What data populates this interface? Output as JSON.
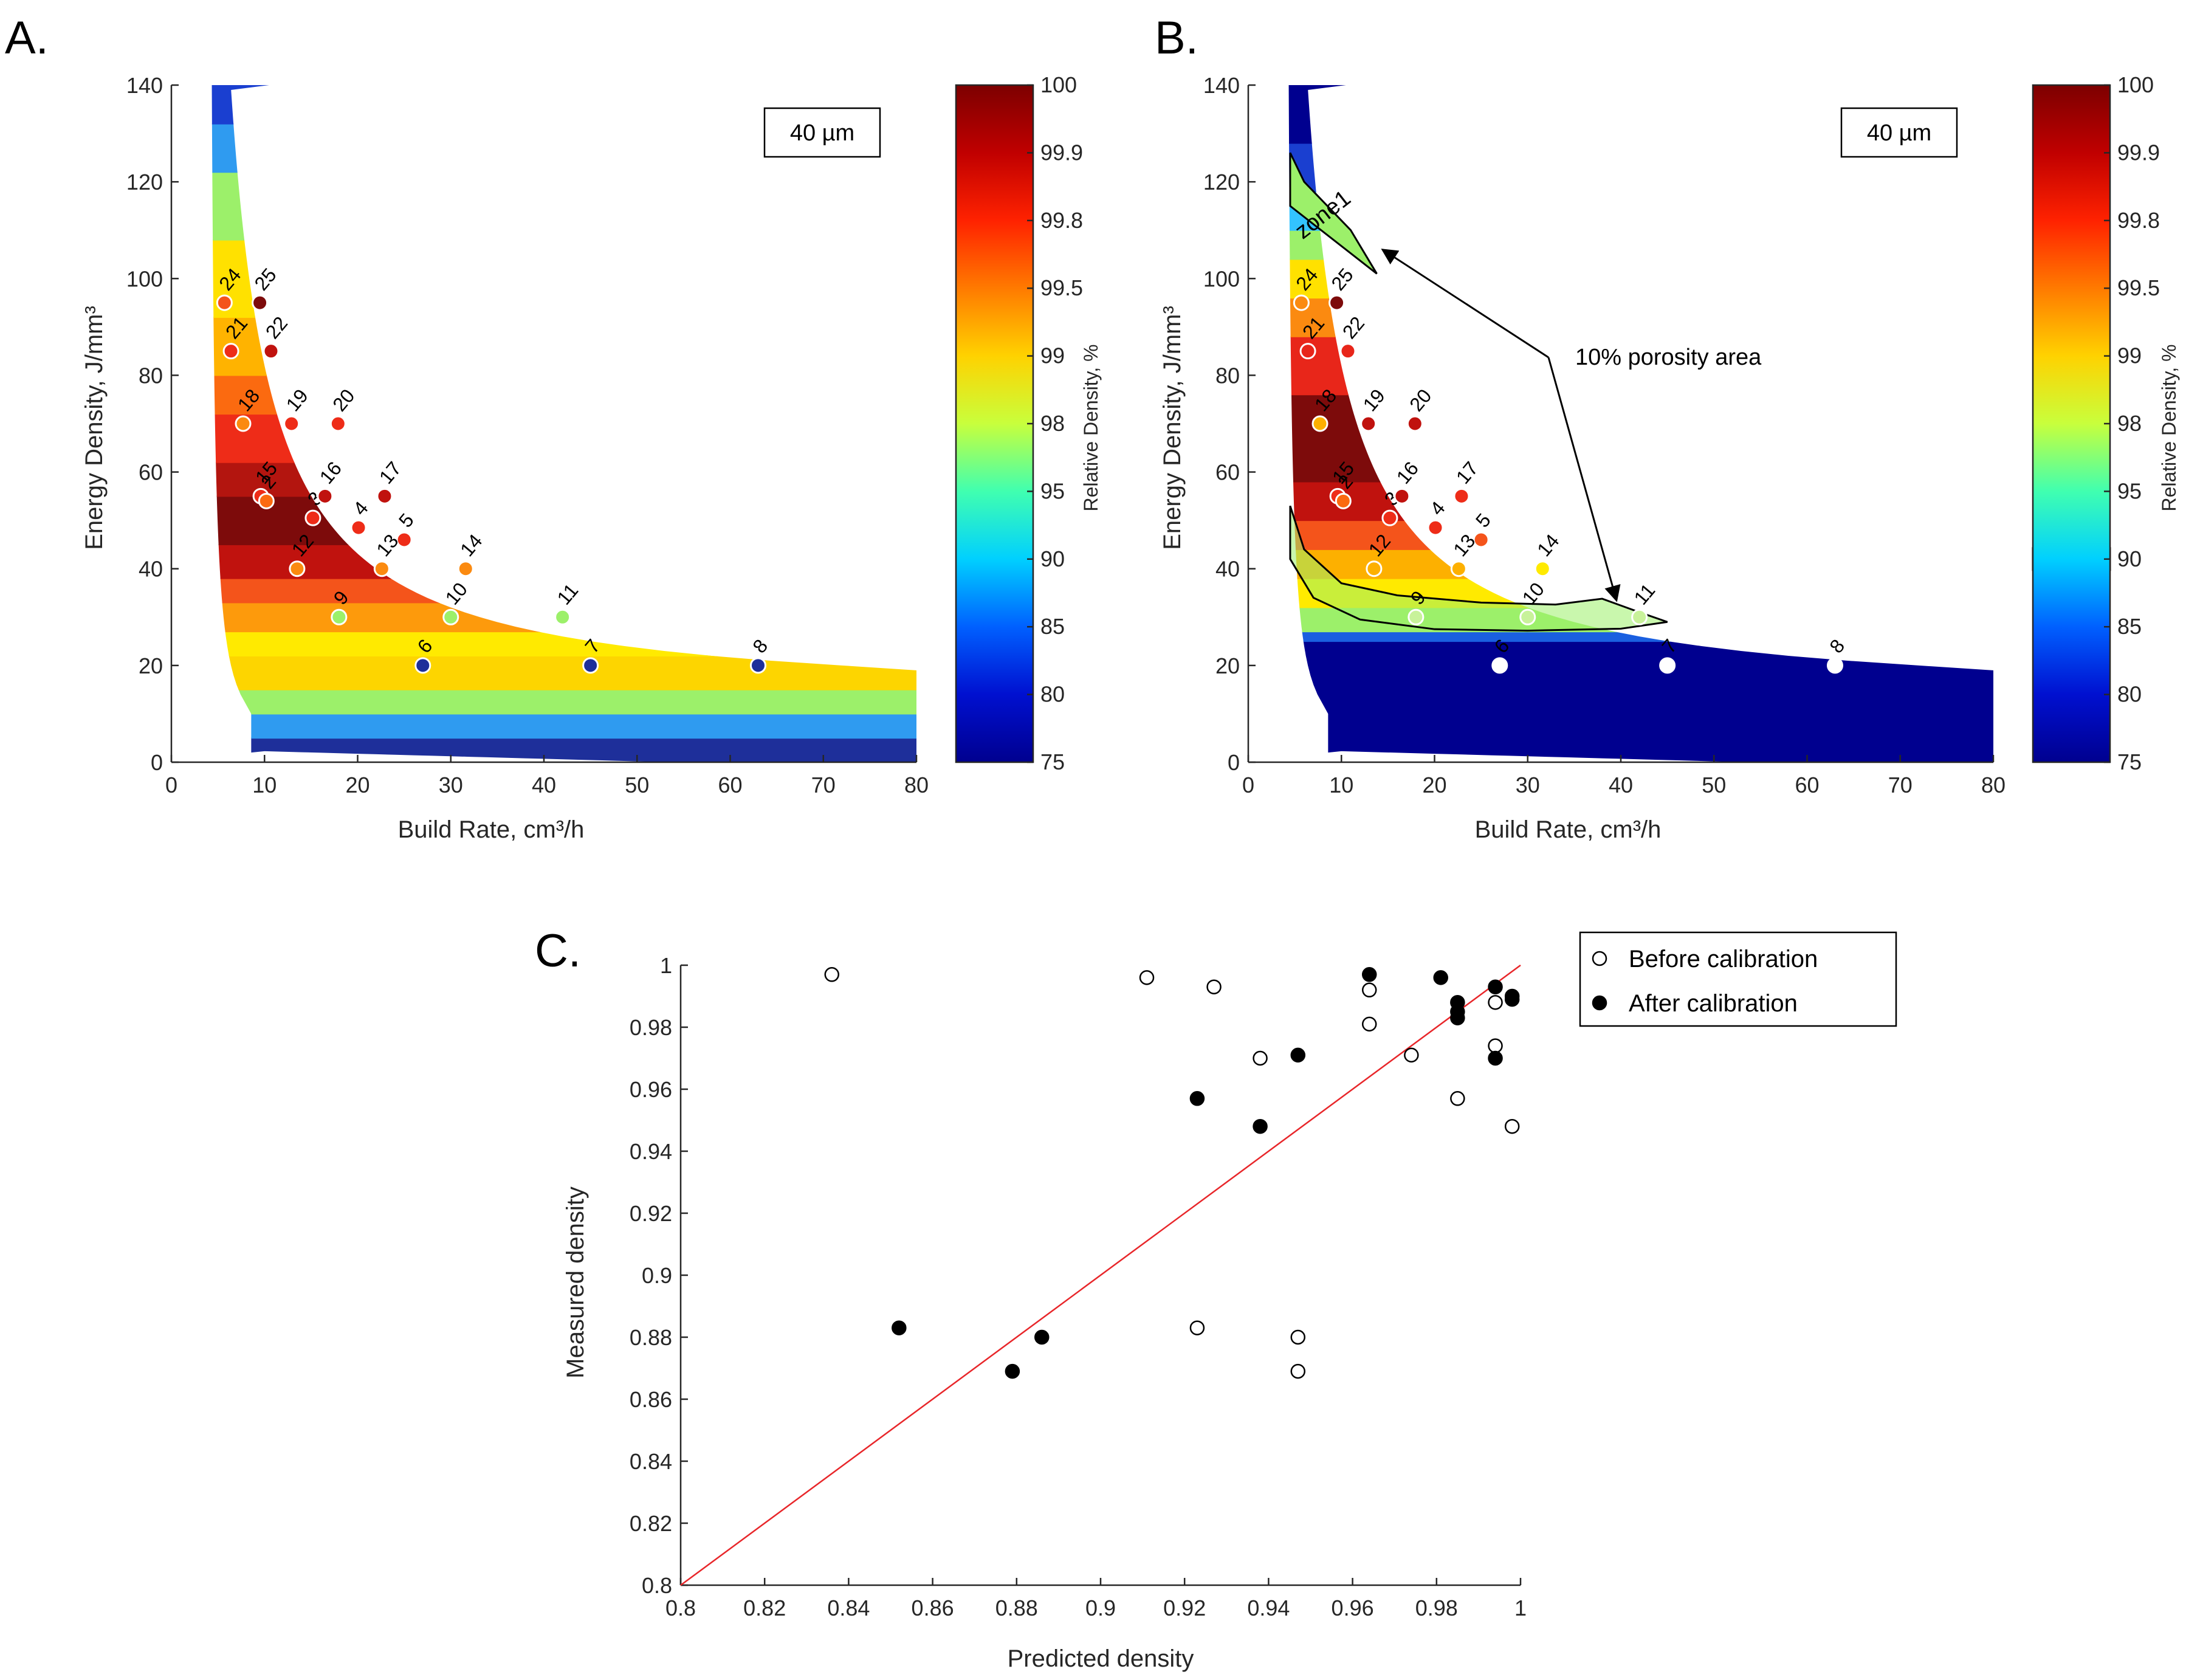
{
  "panels": {
    "a": {
      "letter": "A.",
      "box_label": "40 µm",
      "xlabel": "Build Rate, cm³/h",
      "ylabel": "Energy Density, J/mm³",
      "colorbar_label": "Relative Density, %"
    },
    "b": {
      "letter": "B.",
      "box_label": "40 µm",
      "xlabel": "Build Rate, cm³/h",
      "ylabel": "Energy Density, J/mm³",
      "colorbar_label": "Relative Density, %",
      "zone_label": "zone1",
      "arrow_label": "10% porosity area"
    },
    "c": {
      "letter": "C.",
      "xlabel": "Predicted density",
      "ylabel": "Measured density",
      "legend": [
        "Before calibration",
        "After calibration"
      ]
    }
  },
  "colors": {
    "fit_line": "#e8262a",
    "axis": "#262626"
  },
  "chart_data": [
    {
      "type": "heatmap",
      "panel": "A",
      "xlabel": "Build Rate, cm³/h",
      "ylabel": "Energy Density, J/mm³",
      "xlim": [
        0,
        80
      ],
      "ylim": [
        0,
        140
      ],
      "xticks": [
        "0",
        "10",
        "20",
        "30",
        "40",
        "50",
        "60",
        "70",
        "80"
      ],
      "yticks": [
        "0",
        "20",
        "40",
        "60",
        "80",
        "100",
        "120",
        "140"
      ],
      "colorbar": {
        "label": "Relative Density, %",
        "ticks": [
          "100",
          "99.9",
          "99.8",
          "99.5",
          "99",
          "98",
          "95",
          "90",
          "85",
          "80",
          "75"
        ]
      },
      "bands": [
        {
          "e0": 0,
          "e1": 5,
          "color": "#1e2f9a"
        },
        {
          "e0": 5,
          "e1": 10,
          "color": "#2f9bf0"
        },
        {
          "e0": 10,
          "e1": 15,
          "color": "#9cf06a"
        },
        {
          "e0": 15,
          "e1": 22,
          "color": "#fdd500"
        },
        {
          "e0": 22,
          "e1": 27,
          "color": "#ffea00"
        },
        {
          "e0": 27,
          "e1": 33,
          "color": "#fd9a0c"
        },
        {
          "e0": 33,
          "e1": 38,
          "color": "#f4541b"
        },
        {
          "e0": 38,
          "e1": 45,
          "color": "#c0120e"
        },
        {
          "e0": 45,
          "e1": 55,
          "color": "#7d0b0b"
        },
        {
          "e0": 55,
          "e1": 62,
          "color": "#b3150f"
        },
        {
          "e0": 62,
          "e1": 72,
          "color": "#ee2c18"
        },
        {
          "e0": 72,
          "e1": 80,
          "color": "#fb6a10"
        },
        {
          "e0": 80,
          "e1": 92,
          "color": "#ffb300"
        },
        {
          "e0": 92,
          "e1": 108,
          "color": "#ffe100"
        },
        {
          "e0": 108,
          "e1": 122,
          "color": "#9cf06a"
        },
        {
          "e0": 122,
          "e1": 132,
          "color": "#2f9bf0"
        },
        {
          "e0": 132,
          "e1": 140,
          "color": "#1a3fd0"
        }
      ],
      "points": [
        {
          "label": "24",
          "x": 5.7,
          "y": 95,
          "color": "#f4541b"
        },
        {
          "label": "25",
          "x": 9.5,
          "y": 95,
          "color": "#7d0b0b"
        },
        {
          "label": "21",
          "x": 6.4,
          "y": 85,
          "color": "#ee2c18"
        },
        {
          "label": "22",
          "x": 10.7,
          "y": 85,
          "color": "#c0120e"
        },
        {
          "label": "18",
          "x": 7.7,
          "y": 70,
          "color": "#fb8a10"
        },
        {
          "label": "19",
          "x": 12.9,
          "y": 70,
          "color": "#ee2c18"
        },
        {
          "label": "20",
          "x": 17.9,
          "y": 70,
          "color": "#ee2c18"
        },
        {
          "label": "15",
          "x": 9.6,
          "y": 55,
          "color": "#ee2c18"
        },
        {
          "label": "2",
          "x": 10.2,
          "y": 54,
          "color": "#fb6a10"
        },
        {
          "label": "3",
          "x": 15.2,
          "y": 50.5,
          "color": "#ee2c18"
        },
        {
          "label": "16",
          "x": 16.5,
          "y": 55,
          "color": "#c0120e"
        },
        {
          "label": "17",
          "x": 22.9,
          "y": 55,
          "color": "#c0120e"
        },
        {
          "label": "4",
          "x": 20.1,
          "y": 48.5,
          "color": "#ee2c18"
        },
        {
          "label": "5",
          "x": 25,
          "y": 46,
          "color": "#ee2c18"
        },
        {
          "label": "12",
          "x": 13.5,
          "y": 40,
          "color": "#fb8a10"
        },
        {
          "label": "13",
          "x": 22.6,
          "y": 40,
          "color": "#fb8a10"
        },
        {
          "label": "14",
          "x": 31.6,
          "y": 40,
          "color": "#fb8a10"
        },
        {
          "label": "9",
          "x": 18,
          "y": 30,
          "color": "#9cf06a"
        },
        {
          "label": "10",
          "x": 30,
          "y": 30,
          "color": "#9cf06a"
        },
        {
          "label": "11",
          "x": 42,
          "y": 30,
          "color": "#9cf06a"
        },
        {
          "label": "6",
          "x": 27,
          "y": 20,
          "color": "#1e2f9a"
        },
        {
          "label": "7",
          "x": 45,
          "y": 20,
          "color": "#1e2f9a"
        },
        {
          "label": "8",
          "x": 63,
          "y": 20,
          "color": "#1e2f9a"
        }
      ]
    },
    {
      "type": "heatmap",
      "panel": "B",
      "xlabel": "Build Rate, cm³/h",
      "ylabel": "Energy Density, J/mm³",
      "xlim": [
        0,
        80
      ],
      "ylim": [
        0,
        140
      ],
      "xticks": [
        "0",
        "10",
        "20",
        "30",
        "40",
        "50",
        "60",
        "70",
        "80"
      ],
      "yticks": [
        "0",
        "20",
        "40",
        "60",
        "80",
        "100",
        "120",
        "140"
      ],
      "colorbar": {
        "label": "Relative Density, %",
        "ticks": [
          "100",
          "99.9",
          "99.8",
          "99.5",
          "99",
          "98",
          "95",
          "90",
          "85",
          "80",
          "75"
        ]
      },
      "bands": [
        {
          "e0": 0,
          "e1": 25,
          "color": "#00008f"
        },
        {
          "e0": 25,
          "e1": 27,
          "color": "#1a5fe0"
        },
        {
          "e0": 27,
          "e1": 32,
          "color": "#9cf06a"
        },
        {
          "e0": 32,
          "e1": 38,
          "color": "#ffea00"
        },
        {
          "e0": 38,
          "e1": 44,
          "color": "#fdb000"
        },
        {
          "e0": 44,
          "e1": 50,
          "color": "#f4541b"
        },
        {
          "e0": 50,
          "e1": 58,
          "color": "#c0120e"
        },
        {
          "e0": 58,
          "e1": 76,
          "color": "#7d0b0b"
        },
        {
          "e0": 76,
          "e1": 88,
          "color": "#e8261a"
        },
        {
          "e0": 88,
          "e1": 96,
          "color": "#fb8a10"
        },
        {
          "e0": 96,
          "e1": 104,
          "color": "#ffe100"
        },
        {
          "e0": 104,
          "e1": 110,
          "color": "#9cf06a"
        },
        {
          "e0": 110,
          "e1": 118,
          "color": "#33c3ff"
        },
        {
          "e0": 118,
          "e1": 128,
          "color": "#1a3fd0"
        },
        {
          "e0": 128,
          "e1": 140,
          "color": "#00008f"
        }
      ],
      "points": [
        {
          "label": "24",
          "x": 5.7,
          "y": 95,
          "color": "#fb8a10"
        },
        {
          "label": "25",
          "x": 9.5,
          "y": 95,
          "color": "#7d0b0b"
        },
        {
          "label": "21",
          "x": 6.4,
          "y": 85,
          "color": "#e8261a"
        },
        {
          "label": "22",
          "x": 10.7,
          "y": 85,
          "color": "#e8261a"
        },
        {
          "label": "18",
          "x": 7.7,
          "y": 70,
          "color": "#fdb000"
        },
        {
          "label": "19",
          "x": 12.9,
          "y": 70,
          "color": "#c0120e"
        },
        {
          "label": "20",
          "x": 17.9,
          "y": 70,
          "color": "#c0120e"
        },
        {
          "label": "15",
          "x": 9.6,
          "y": 55,
          "color": "#ee2c18"
        },
        {
          "label": "2",
          "x": 10.2,
          "y": 54,
          "color": "#fb6a10"
        },
        {
          "label": "3",
          "x": 15.2,
          "y": 50.5,
          "color": "#ee2c18"
        },
        {
          "label": "16",
          "x": 16.5,
          "y": 55,
          "color": "#c0120e"
        },
        {
          "label": "17",
          "x": 22.9,
          "y": 55,
          "color": "#ee2c18"
        },
        {
          "label": "4",
          "x": 20.1,
          "y": 48.5,
          "color": "#ee2c18"
        },
        {
          "label": "5",
          "x": 25,
          "y": 46,
          "color": "#f4541b"
        },
        {
          "label": "12",
          "x": 13.5,
          "y": 40,
          "color": "#fdb000"
        },
        {
          "label": "13",
          "x": 22.6,
          "y": 40,
          "color": "#fdb000"
        },
        {
          "label": "14",
          "x": 31.6,
          "y": 40,
          "color": "#ffea00"
        },
        {
          "label": "9",
          "x": 18,
          "y": 30,
          "color": "#c8f29a"
        },
        {
          "label": "10",
          "x": 30,
          "y": 30,
          "color": "#c8f29a"
        },
        {
          "label": "11",
          "x": 42,
          "y": 30,
          "color": "#c8f29a"
        },
        {
          "label": "6",
          "x": 27,
          "y": 20,
          "color": "#ffffff"
        },
        {
          "label": "7",
          "x": 45,
          "y": 20,
          "color": "#ffffff"
        },
        {
          "label": "8",
          "x": 63,
          "y": 20,
          "color": "#ffffff"
        }
      ]
    },
    {
      "type": "scatter",
      "panel": "C",
      "xlabel": "Predicted density",
      "ylabel": "Measured density",
      "xlim": [
        0.8,
        1
      ],
      "ylim": [
        0.8,
        1
      ],
      "xticks": [
        "0.8",
        "0.82",
        "0.84",
        "0.86",
        "0.88",
        "0.9",
        "0.92",
        "0.94",
        "0.96",
        "0.98",
        "1"
      ],
      "yticks": [
        "0.8",
        "0.82",
        "0.84",
        "0.86",
        "0.88",
        "0.9",
        "0.92",
        "0.94",
        "0.96",
        "0.98",
        "1"
      ],
      "legend_position": "top-right",
      "series": [
        {
          "name": "Before calibration",
          "marker": "open-circle",
          "x": [
            0.836,
            0.911,
            0.927,
            0.964,
            0.964,
            0.938,
            0.974,
            0.994,
            0.994,
            0.985,
            0.998,
            0.923,
            0.947,
            0.947
          ],
          "y": [
            0.997,
            0.996,
            0.993,
            0.992,
            0.981,
            0.97,
            0.971,
            0.988,
            0.974,
            0.957,
            0.948,
            0.883,
            0.88,
            0.869
          ]
        },
        {
          "name": "After calibration",
          "marker": "filled-circle",
          "x": [
            0.964,
            0.981,
            0.985,
            0.985,
            0.985,
            0.994,
            0.998,
            0.998,
            0.994,
            0.947,
            0.923,
            0.938,
            0.852,
            0.886,
            0.879
          ],
          "y": [
            0.997,
            0.996,
            0.988,
            0.985,
            0.983,
            0.993,
            0.99,
            0.989,
            0.97,
            0.971,
            0.957,
            0.948,
            0.883,
            0.88,
            0.869
          ]
        }
      ],
      "fit_line": {
        "x": [
          0.8,
          1
        ],
        "y": [
          0.8,
          1
        ]
      }
    }
  ]
}
